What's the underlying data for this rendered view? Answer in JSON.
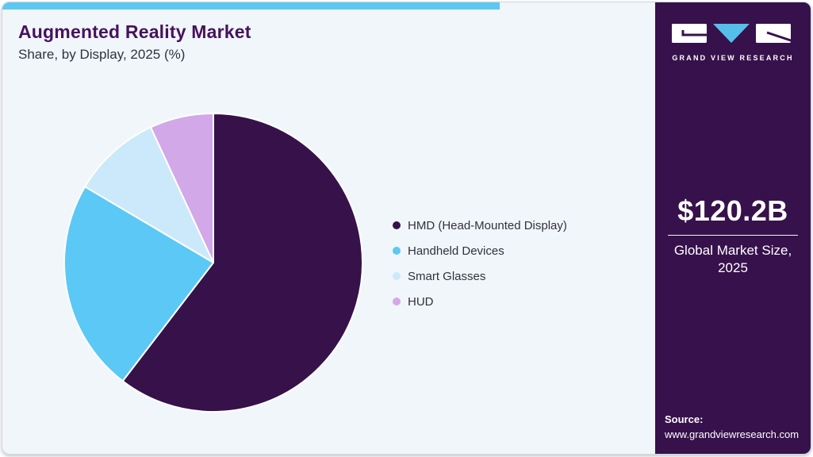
{
  "header": {
    "title": "Augmented Reality Market",
    "subtitle": "Share, by Display, 2025 (%)"
  },
  "chart_data": {
    "type": "pie",
    "title": "Augmented Reality Market Share, by Display, 2025 (%)",
    "categories": [
      "HMD (Head-Mounted Display)",
      "Handheld Devices",
      "Smart Glasses",
      "HUD"
    ],
    "values": [
      60.4,
      23.1,
      9.6,
      6.9
    ],
    "unit": "percent of market share",
    "colors": [
      "#371149",
      "#5bc8f5",
      "#cbe9fa",
      "#d2a8e8"
    ],
    "start_angle": "12 o'clock",
    "direction": "clockwise",
    "legend_position": "right",
    "data_labels_shown": false
  },
  "sidebar": {
    "brand": "GRAND VIEW RESEARCH",
    "stat_value": "$120.2B",
    "stat_label": "Global Market Size, 2025",
    "source_label": "Source:",
    "source_url": "www.grandviewresearch.com"
  },
  "theme": {
    "accent_bar": "#5ec7f0",
    "panel_bg": "#f0f6fa",
    "sidebar_bg": "#37114b",
    "title_color": "#47125c",
    "text_color": "#33313c",
    "logo_triangle": "#55bfe9",
    "slice_separator": "#ffffff"
  }
}
